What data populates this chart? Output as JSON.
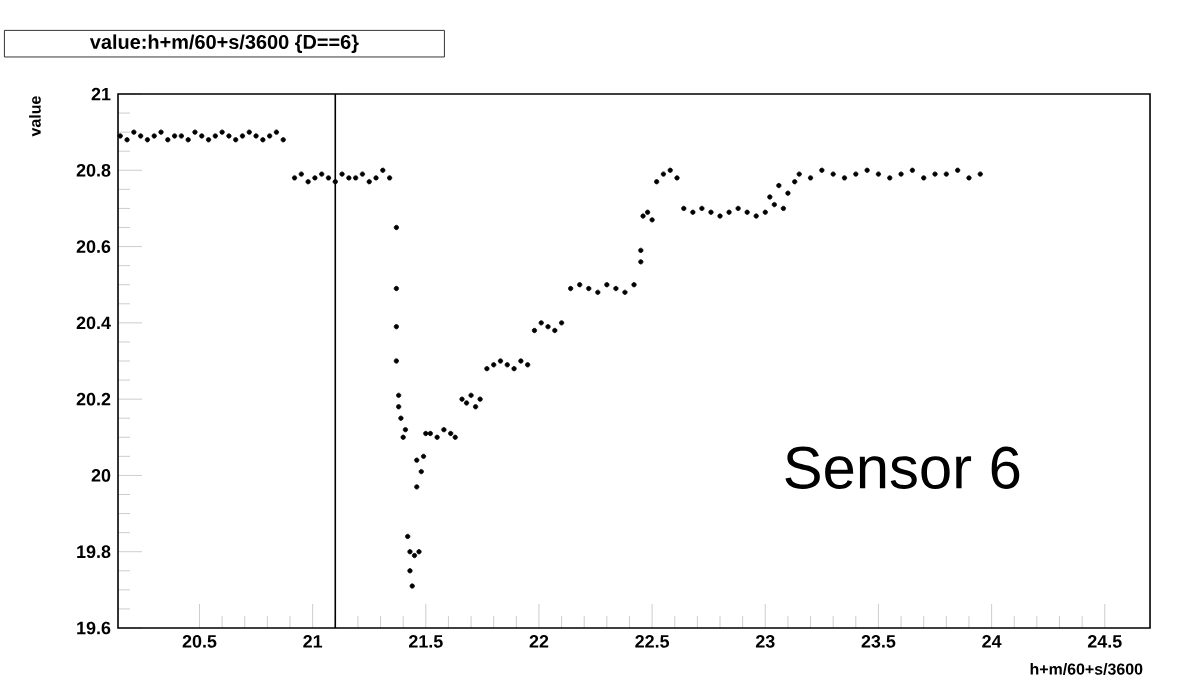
{
  "chart_data": {
    "type": "scatter",
    "title": "value:h+m/60+s/3600 {D==6}",
    "xlabel": "h+m/60+s/3600",
    "ylabel": "value",
    "annotations": [
      "Sensor 6"
    ],
    "x": [
      20.15,
      20.18,
      20.21,
      20.24,
      20.27,
      20.3,
      20.33,
      20.36,
      20.39,
      20.42,
      20.45,
      20.48,
      20.51,
      20.54,
      20.57,
      20.6,
      20.63,
      20.66,
      20.69,
      20.72,
      20.75,
      20.78,
      20.81,
      20.84,
      20.87,
      20.92,
      20.95,
      20.98,
      21.01,
      21.04,
      21.07,
      21.1,
      21.13,
      21.16,
      21.19,
      21.22,
      21.25,
      21.28,
      21.31,
      21.34,
      21.37,
      21.37,
      21.37,
      21.37,
      21.38,
      21.38,
      21.39,
      21.4,
      21.41,
      21.42,
      21.43,
      21.43,
      21.44,
      21.45,
      21.46,
      21.46,
      21.47,
      21.48,
      21.49,
      21.5,
      21.52,
      21.55,
      21.58,
      21.61,
      21.63,
      21.66,
      21.68,
      21.7,
      21.72,
      21.74,
      21.77,
      21.8,
      21.83,
      21.86,
      21.89,
      21.92,
      21.95,
      21.98,
      22.01,
      22.04,
      22.07,
      22.1,
      22.14,
      22.18,
      22.22,
      22.26,
      22.3,
      22.34,
      22.38,
      22.42,
      22.45,
      22.45,
      22.46,
      22.48,
      22.5,
      22.52,
      22.55,
      22.58,
      22.61,
      22.64,
      22.68,
      22.72,
      22.76,
      22.8,
      22.84,
      22.88,
      22.92,
      22.96,
      23.0,
      23.04,
      23.08,
      23.02,
      23.06,
      23.1,
      23.13,
      23.15,
      23.2,
      23.25,
      23.3,
      23.35,
      23.4,
      23.45,
      23.5,
      23.55,
      23.6,
      23.65,
      23.7,
      23.75,
      23.8,
      23.85,
      23.9,
      23.95
    ],
    "values": [
      20.89,
      20.88,
      20.9,
      20.89,
      20.88,
      20.89,
      20.9,
      20.88,
      20.89,
      20.89,
      20.88,
      20.9,
      20.89,
      20.88,
      20.89,
      20.9,
      20.89,
      20.88,
      20.89,
      20.9,
      20.89,
      20.88,
      20.89,
      20.9,
      20.88,
      20.78,
      20.79,
      20.77,
      20.78,
      20.79,
      20.78,
      20.77,
      20.79,
      20.78,
      20.78,
      20.79,
      20.77,
      20.78,
      20.8,
      20.78,
      20.65,
      20.49,
      20.39,
      20.3,
      20.21,
      20.18,
      20.15,
      20.1,
      20.12,
      19.84,
      19.8,
      19.75,
      19.71,
      19.79,
      19.97,
      20.04,
      19.8,
      20.01,
      20.05,
      20.11,
      20.11,
      20.1,
      20.12,
      20.11,
      20.1,
      20.2,
      20.19,
      20.21,
      20.18,
      20.2,
      20.28,
      20.29,
      20.3,
      20.29,
      20.28,
      20.3,
      20.29,
      20.38,
      20.4,
      20.39,
      20.38,
      20.4,
      20.49,
      20.5,
      20.49,
      20.48,
      20.5,
      20.49,
      20.48,
      20.5,
      20.56,
      20.59,
      20.68,
      20.69,
      20.67,
      20.77,
      20.79,
      20.8,
      20.78,
      20.7,
      20.69,
      20.7,
      20.69,
      20.68,
      20.69,
      20.7,
      20.69,
      20.68,
      20.69,
      20.71,
      20.7,
      20.73,
      20.76,
      20.74,
      20.77,
      20.79,
      20.78,
      20.8,
      20.79,
      20.78,
      20.79,
      20.8,
      20.79,
      20.78,
      20.79,
      20.8,
      20.78,
      20.79,
      20.79,
      20.8,
      20.78,
      20.79
    ],
    "color": "#000000",
    "xlim": [
      20.14,
      24.7
    ],
    "xticks": [
      20.5,
      21,
      21.5,
      22,
      22.5,
      23,
      23.5,
      24,
      24.5
    ],
    "ylim": [
      19.6,
      21
    ],
    "yticks": [
      19.6,
      19.8,
      20,
      20.2,
      20.4,
      20.6,
      20.8,
      21
    ],
    "ref_lines": [
      {
        "axis": "x",
        "value": 21.1,
        "color": "#000000"
      }
    ],
    "grid": false
  }
}
